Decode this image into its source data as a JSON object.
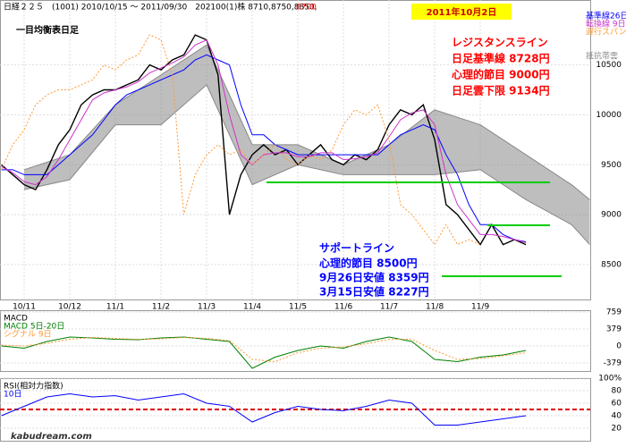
{
  "header": {
    "info": "日経２２５　(1001) 2010/10/15 ～ 2011/09/30　202100(1)株 8710,8750,8850,",
    "last": "8700",
    "date": "2011年10月2日"
  },
  "footer": "kabudream.com",
  "resistance": [
    "レジスタンスライン",
    "日足基準線 8728円",
    "心理的節目 9000円",
    "日足雲下限 9134円"
  ],
  "support": [
    "サポートライン",
    "心理的節目 8500円",
    "9月26日安値 8359円",
    "3月15日安値 8227円"
  ],
  "chart_data": [
    {
      "type": "line",
      "title": "一目均衡表日足",
      "xlim": [
        -0.53,
        12.41
      ],
      "ylim": [
        8150,
        11150
      ],
      "xticks": [
        {
          "value": 0,
          "label": "10/11"
        },
        {
          "value": 1,
          "label": "10/12"
        },
        {
          "value": 2,
          "label": "11/1"
        },
        {
          "value": 3,
          "label": "11/2"
        },
        {
          "value": 4,
          "label": "11/3"
        },
        {
          "value": 5,
          "label": "11/4"
        },
        {
          "value": 6,
          "label": "11/5"
        },
        {
          "value": 7,
          "label": "11/6"
        },
        {
          "value": 8,
          "label": "11/7"
        },
        {
          "value": 9,
          "label": "11/8"
        },
        {
          "value": 10,
          "label": "11/9"
        }
      ],
      "yticks": [
        8500,
        9000,
        9500,
        10000,
        10500
      ],
      "x": [
        -0.5,
        -0.25,
        0,
        0.25,
        0.5,
        0.75,
        1,
        1.25,
        1.5,
        1.75,
        2,
        2.25,
        2.5,
        2.75,
        3,
        3.25,
        3.5,
        3.75,
        4,
        4.25,
        4.5,
        4.75,
        5,
        5.25,
        5.5,
        5.75,
        6,
        6.25,
        6.5,
        6.75,
        7,
        7.25,
        7.5,
        7.75,
        8,
        8.25,
        8.5,
        8.75,
        9,
        9.25,
        9.5,
        9.75,
        10,
        10.25,
        10.5,
        10.75,
        11
      ],
      "series": [
        {
          "color": "#000000",
          "values": [
            9500,
            9400,
            9300,
            9250,
            9450,
            9700,
            9850,
            10100,
            10200,
            10250,
            10250,
            10300,
            10350,
            10500,
            10450,
            10550,
            10600,
            10800,
            10750,
            10400,
            9000,
            9400,
            9600,
            9700,
            9600,
            9650,
            9500,
            9600,
            9700,
            9550,
            9500,
            9600,
            9550,
            9650,
            9900,
            10050,
            10000,
            10100,
            9750,
            9100,
            9000,
            8850,
            8700,
            8900,
            8700,
            8750,
            8700
          ]
        },
        {
          "name": "基準線26日",
          "color": "#0000ff",
          "values": [
            9450,
            9450,
            9400,
            9400,
            9400,
            9500,
            9600,
            9700,
            9800,
            9950,
            10100,
            10200,
            10250,
            10300,
            10350,
            10400,
            10450,
            10550,
            10600,
            10550,
            10500,
            10100,
            9800,
            9800,
            9700,
            9650,
            9600,
            9600,
            9600,
            9600,
            9600,
            9600,
            9600,
            9600,
            9700,
            9800,
            9850,
            9900,
            9850,
            9600,
            9400,
            9100,
            8900,
            8900,
            8800,
            8750,
            8728
          ]
        },
        {
          "name": "転換線 9日",
          "color": "#cc33cc",
          "values": [
            9480,
            9420,
            9330,
            9300,
            9380,
            9550,
            9750,
            9950,
            10150,
            10220,
            10250,
            10280,
            10330,
            10420,
            10470,
            10520,
            10580,
            10700,
            10750,
            10500,
            10000,
            9600,
            9500,
            9600,
            9620,
            9620,
            9580,
            9580,
            9620,
            9620,
            9550,
            9560,
            9580,
            9620,
            9780,
            9950,
            10020,
            10050,
            9900,
            9400,
            9100,
            8950,
            8800,
            8800,
            8780,
            8750,
            8720
          ]
        },
        {
          "name": "遅行スパン",
          "color": "#ff9933",
          "values": [
            9450,
            9700,
            9850,
            10100,
            10200,
            10250,
            10250,
            10300,
            10350,
            10500,
            10450,
            10550,
            10600,
            10800,
            10750,
            10400,
            9000,
            9400,
            9600,
            9700,
            9600,
            9650,
            9500,
            9600,
            9700,
            9550,
            9500,
            9600,
            9550,
            9650,
            9900,
            10050,
            10000,
            10100,
            9750,
            9100,
            9000,
            8850,
            8700,
            8900,
            8700,
            8750,
            8700,
            null,
            null,
            null,
            null
          ]
        }
      ],
      "cloud": {
        "name": "抵抗帯雲",
        "color": "#888888",
        "x": [
          0,
          1,
          2,
          3,
          4,
          5,
          6,
          7,
          8,
          9,
          10,
          11,
          12,
          12.4
        ],
        "upper": [
          9450,
          9600,
          10100,
          10400,
          10700,
          9700,
          9700,
          9500,
          9700,
          10050,
          9900,
          9600,
          9300,
          9150
        ],
        "lower": [
          9250,
          9350,
          9900,
          9900,
          10300,
          9300,
          9500,
          9400,
          9400,
          9400,
          9450,
          9150,
          8900,
          8700
        ]
      }
    },
    {
      "type": "line",
      "title": "MACD",
      "xlim": [
        -0.53,
        12.41
      ],
      "ylim": [
        -560,
        800
      ],
      "yticks": [
        759,
        379,
        0,
        -379
      ],
      "x": [
        -0.5,
        0,
        0.5,
        1,
        1.5,
        2,
        2.5,
        3,
        3.5,
        4,
        4.5,
        5,
        5.5,
        6,
        6.5,
        7,
        7.5,
        8,
        8.5,
        9,
        9.5,
        10,
        10.5,
        11
      ],
      "series": [
        {
          "name": "MACD 5日-20日",
          "color": "#008000",
          "values": [
            0,
            -50,
            100,
            200,
            180,
            150,
            140,
            180,
            200,
            150,
            100,
            -500,
            -250,
            -100,
            0,
            -50,
            100,
            200,
            100,
            -300,
            -350,
            -250,
            -200,
            -100
          ]
        },
        {
          "name": "シグナル 9日",
          "color": "#ff9933",
          "values": [
            20,
            0,
            60,
            150,
            190,
            170,
            150,
            160,
            190,
            170,
            120,
            -300,
            -350,
            -150,
            -50,
            -20,
            50,
            150,
            150,
            -100,
            -300,
            -280,
            -220,
            -150
          ]
        }
      ]
    },
    {
      "type": "line",
      "title": "RSI(相対力指数)",
      "xlim": [
        -0.53,
        12.41
      ],
      "ylim": [
        0,
        100
      ],
      "yticks": [
        {
          "value": 100,
          "label": "100%"
        },
        80,
        60,
        40,
        20
      ],
      "hline": 50,
      "x": [
        -0.5,
        0,
        0.5,
        1,
        1.5,
        2,
        2.5,
        3,
        3.5,
        4,
        4.5,
        5,
        5.5,
        6,
        6.5,
        7,
        7.5,
        8,
        8.5,
        9,
        9.5,
        10,
        10.5,
        11
      ],
      "series": [
        {
          "name": "10日",
          "color": "#0000ff",
          "values": [
            40,
            55,
            70,
            75,
            70,
            72,
            65,
            70,
            75,
            60,
            55,
            30,
            45,
            55,
            50,
            48,
            55,
            65,
            60,
            25,
            25,
            30,
            35,
            40
          ]
        }
      ]
    }
  ]
}
